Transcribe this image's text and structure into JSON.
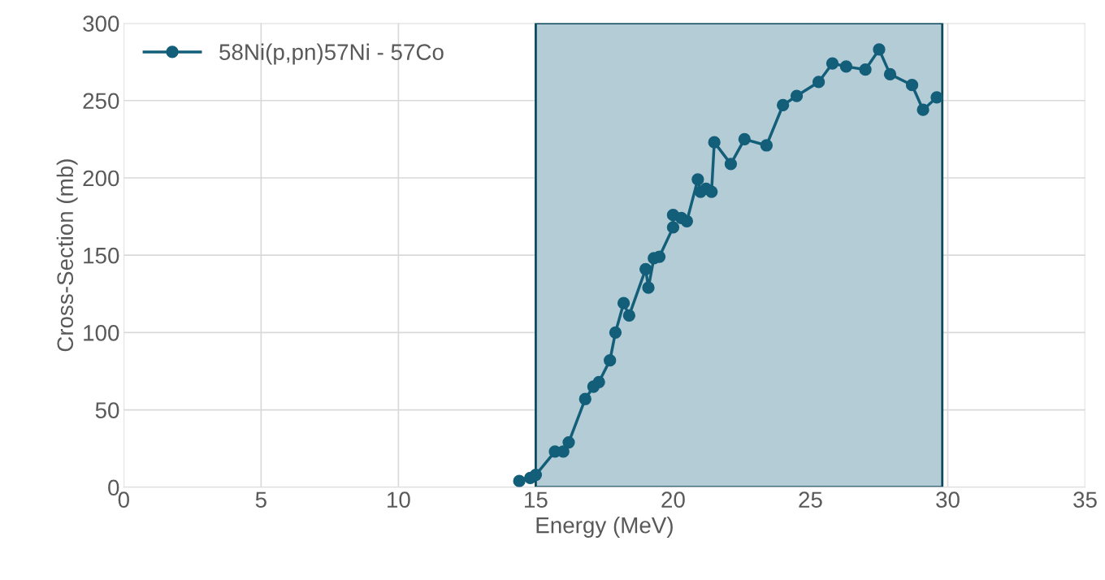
{
  "chart_data": {
    "type": "line",
    "xlabel": "Energy (MeV)",
    "ylabel": "Cross-Section (mb)",
    "xlim": [
      0,
      35
    ],
    "xticks": [
      0,
      5,
      10,
      15,
      20,
      25,
      30,
      35
    ],
    "ylim": [
      0,
      300
    ],
    "yticks": [
      0,
      50,
      100,
      150,
      200,
      250,
      300
    ],
    "grid": true,
    "legend": "top left",
    "marker": "circle",
    "line_style": "solid",
    "x": [
      14.4,
      14.8,
      15.0,
      15.7,
      16.0,
      16.2,
      16.8,
      17.1,
      17.3,
      17.7,
      17.9,
      18.2,
      18.4,
      19.0,
      19.1,
      19.3,
      19.5,
      20.0,
      20.0,
      20.3,
      20.5,
      20.9,
      21.0,
      21.2,
      21.4,
      21.5,
      22.1,
      22.6,
      23.4,
      24.0,
      24.5,
      25.3,
      25.8,
      26.3,
      27.0,
      27.5,
      27.9,
      28.7,
      29.1,
      29.6
    ],
    "series": [
      {
        "name": "58Ni(p,pn)57Ni - 57Co",
        "color": "#135e79",
        "values": [
          4,
          6,
          8,
          23,
          23,
          29,
          57,
          65,
          68,
          82,
          100,
          119,
          111,
          141,
          129,
          148,
          149,
          168,
          176,
          174,
          172,
          199,
          191,
          193,
          191,
          223,
          209,
          225,
          221,
          247,
          253,
          262,
          274,
          272,
          270,
          283,
          267,
          260,
          244,
          252
        ]
      }
    ],
    "bands": [
      {
        "axis": "x",
        "from": 15,
        "to": 29.8,
        "color": "#b3ccd6"
      }
    ]
  }
}
